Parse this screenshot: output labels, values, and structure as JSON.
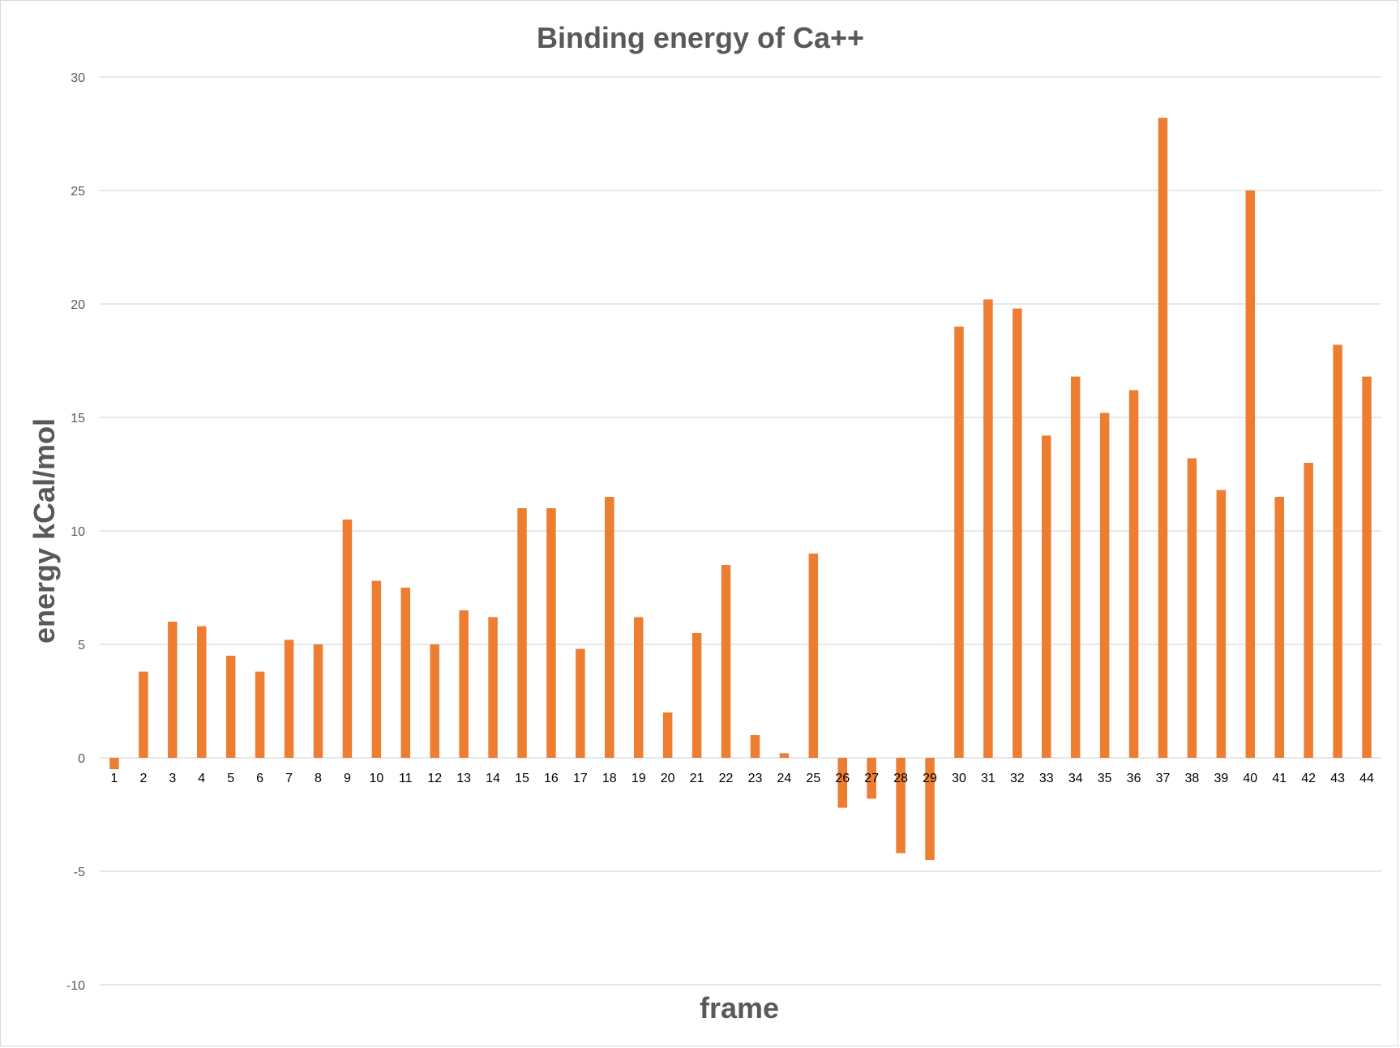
{
  "chart_data": {
    "type": "bar",
    "title": "Binding energy of Ca++",
    "xlabel": "frame",
    "ylabel": "energy kCal/mol",
    "ylim": [
      -10,
      30
    ],
    "yticks": [
      30,
      25,
      20,
      15,
      10,
      5,
      0,
      -5,
      -10
    ],
    "grid": true,
    "legend": "none",
    "bar_color": "#ED7D31",
    "categories": [
      "1",
      "2",
      "3",
      "4",
      "5",
      "6",
      "7",
      "8",
      "9",
      "10",
      "11",
      "12",
      "13",
      "14",
      "15",
      "16",
      "17",
      "18",
      "19",
      "20",
      "21",
      "22",
      "23",
      "24",
      "25",
      "26",
      "27",
      "28",
      "29",
      "30",
      "31",
      "32",
      "33",
      "34",
      "35",
      "36",
      "37",
      "38",
      "39",
      "40",
      "41",
      "42",
      "43",
      "44"
    ],
    "values": [
      -0.5,
      3.8,
      6.0,
      5.8,
      4.5,
      3.8,
      5.2,
      5.0,
      10.5,
      7.8,
      7.5,
      5.0,
      6.5,
      6.2,
      11.0,
      11.0,
      4.8,
      11.5,
      6.2,
      2.0,
      5.5,
      8.5,
      1.0,
      0.2,
      9.0,
      -2.2,
      -1.8,
      -4.2,
      -4.5,
      19.0,
      20.2,
      19.8,
      14.2,
      16.8,
      15.2,
      16.2,
      28.2,
      13.2,
      11.8,
      25.0,
      11.5,
      13.0,
      18.2,
      16.8
    ]
  }
}
